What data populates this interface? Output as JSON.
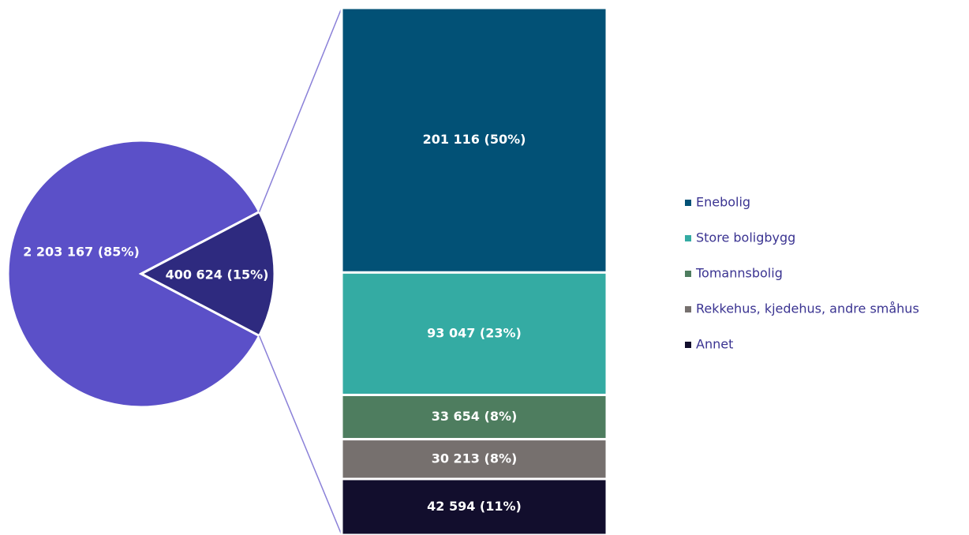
{
  "chart_data": [
    {
      "type": "pie",
      "values": [
        2203167,
        400624
      ],
      "value_labels": [
        "2 203 167 (85%)",
        "400 624 (15%)"
      ],
      "colors": [
        "#5b50c8",
        "#2e2a7f"
      ]
    },
    {
      "type": "bar",
      "series": [
        {
          "name": "Enebolig",
          "color": "#025176",
          "values": [
            201116
          ],
          "value_labels": [
            "201 116 (50%)"
          ]
        },
        {
          "name": "Store boligbygg",
          "color": "#34aba3",
          "values": [
            93047
          ],
          "value_labels": [
            "93 047 (23%)"
          ]
        },
        {
          "name": "Tomannsbolig",
          "color": "#4e7d5f",
          "values": [
            33654
          ],
          "value_labels": [
            "33 654 (8%)"
          ]
        },
        {
          "name": "Rekkehus, kjedehus, andre småhus",
          "color": "#76706e",
          "values": [
            30213
          ],
          "value_labels": [
            "30 213 (8%)"
          ]
        },
        {
          "name": "Annet",
          "color": "#120e2d",
          "values": [
            42594
          ],
          "value_labels": [
            "42 594 (11%)"
          ]
        }
      ]
    }
  ]
}
